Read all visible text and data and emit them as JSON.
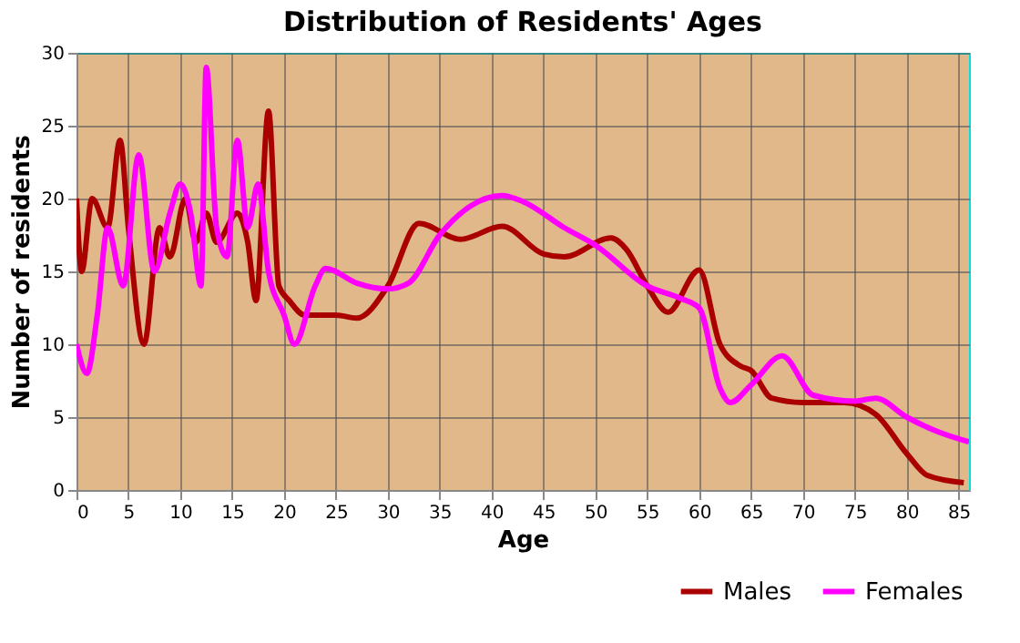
{
  "chart_data": {
    "type": "line",
    "title": "Distribution of Residents' Ages",
    "xlabel": "Age",
    "ylabel": "Number of residents",
    "xlim": [
      0,
      86
    ],
    "xticks": [
      0,
      5,
      10,
      15,
      20,
      25,
      30,
      35,
      40,
      45,
      50,
      55,
      60,
      65,
      70,
      75,
      80,
      85
    ],
    "ylim": [
      0,
      30
    ],
    "yticks": [
      0,
      5,
      10,
      15,
      20,
      25,
      30
    ],
    "grid": true,
    "legend": "bottom right",
    "series": [
      {
        "name": "Males",
        "color": "#aa0000",
        "x": [
          0,
          0.5,
          1.5,
          3,
          4.2,
          5,
          6.5,
          8,
          9,
          10.5,
          11.5,
          12.5,
          13.5,
          15.5,
          16.5,
          17.3,
          18.5,
          19.5,
          20.5,
          22,
          25,
          27,
          30,
          33,
          37,
          41,
          45,
          47,
          51.5,
          53,
          55,
          57,
          60,
          62,
          64,
          65,
          67,
          70,
          74,
          77,
          80,
          82,
          85.5
        ],
        "values": [
          20,
          15,
          20,
          18,
          24,
          18,
          10,
          18,
          16,
          20,
          17,
          19,
          17,
          19,
          17,
          13,
          26,
          14,
          13,
          12,
          12,
          11.8,
          14,
          18.3,
          17.2,
          18.1,
          16.2,
          16,
          17.3,
          16.5,
          14,
          12.2,
          15.1,
          10,
          8.5,
          8.2,
          6.3,
          6,
          6,
          5.2,
          2.5,
          1,
          0.5
        ]
      },
      {
        "name": "Females",
        "color": "#ff00ff",
        "x": [
          0,
          1,
          2,
          3,
          4.5,
          6,
          7.5,
          9,
          10,
          11,
          12,
          12.5,
          13.5,
          14.5,
          15.5,
          16.5,
          17.5,
          18.5,
          20,
          21,
          23,
          24,
          27,
          30,
          32,
          35,
          38,
          41,
          43,
          47,
          50,
          55,
          58,
          60,
          62,
          63,
          65,
          68,
          71,
          75,
          77,
          80,
          83,
          86
        ],
        "values": [
          10,
          8,
          12,
          18,
          14,
          23,
          15,
          19,
          21,
          19,
          14,
          29,
          18,
          16,
          24,
          18,
          21,
          15,
          12,
          10,
          14,
          15.2,
          14.2,
          13.8,
          14.2,
          17.5,
          19.5,
          20.2,
          19.8,
          18,
          16.8,
          14,
          13.2,
          12.5,
          7,
          6,
          7.2,
          9.2,
          6.5,
          6.1,
          6.3,
          5,
          4,
          3.3
        ]
      }
    ]
  }
}
